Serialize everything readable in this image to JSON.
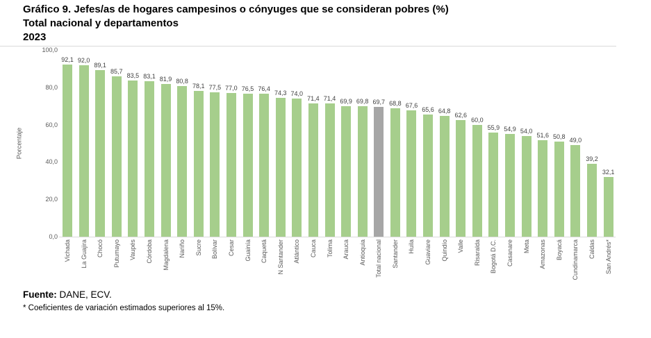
{
  "header": {
    "title_line1": "Gráfico 9. Jefes/as de hogares campesinos o cónyuges que se consideran pobres (%)",
    "title_line2": "Total nacional y departamentos",
    "title_line3": "2023"
  },
  "chart_data": {
    "type": "bar",
    "title": "Jefes/as de hogares campesinos o cónyuges que se consideran pobres (%)",
    "subtitle": "Total nacional y departamentos",
    "year": "2023",
    "xlabel": "",
    "ylabel": "Porcentaje",
    "ylim": [
      0,
      100
    ],
    "grid": false,
    "value_labels": true,
    "yticks": [
      0,
      20,
      40,
      60,
      80,
      100
    ],
    "ytick_labels": [
      "0,0",
      "20,0",
      "40,0",
      "60,0",
      "80,0",
      "100,0"
    ],
    "categories": [
      "Vichada",
      "La Guajira",
      "Chocó",
      "Putumayo",
      "Vaupés",
      "Córdoba",
      "Magdalena",
      "Nariño",
      "Sucre",
      "Bolívar",
      "Cesar",
      "Guainía",
      "Caquetá",
      "N Santander",
      "Atlántico",
      "Cauca",
      "Tolima",
      "Arauca",
      "Antioquia",
      "Total nacional",
      "Santander",
      "Huila",
      "Guaviare",
      "Quindío",
      "Valle",
      "Risaralda",
      "Bogotá D.C.",
      "Casanare",
      "Meta",
      "Amazonas",
      "Boyacá",
      "Cundinamarca",
      "Caldas",
      "San Andrés*"
    ],
    "values": [
      92.1,
      92.0,
      89.1,
      85.7,
      83.5,
      83.1,
      81.9,
      80.8,
      78.1,
      77.5,
      77.0,
      76.5,
      76.4,
      74.3,
      74.0,
      71.4,
      71.4,
      69.9,
      69.8,
      69.7,
      68.8,
      67.6,
      65.6,
      64.8,
      62.6,
      60.0,
      55.9,
      54.9,
      54.0,
      51.6,
      50.8,
      49.0,
      39.2,
      32.1
    ],
    "bar_color": "#a6ce8c",
    "highlight_category": "Total nacional",
    "highlight_color": "#a6a6a6",
    "value_label_color": "#404040",
    "axis_label_color": "#595959",
    "baseline_color": "#d9d9d9"
  },
  "footer": {
    "source_label": "Fuente:",
    "source_text": "DANE, ECV.",
    "note": "* Coeficientes de variación estimados superiores al 15%."
  }
}
